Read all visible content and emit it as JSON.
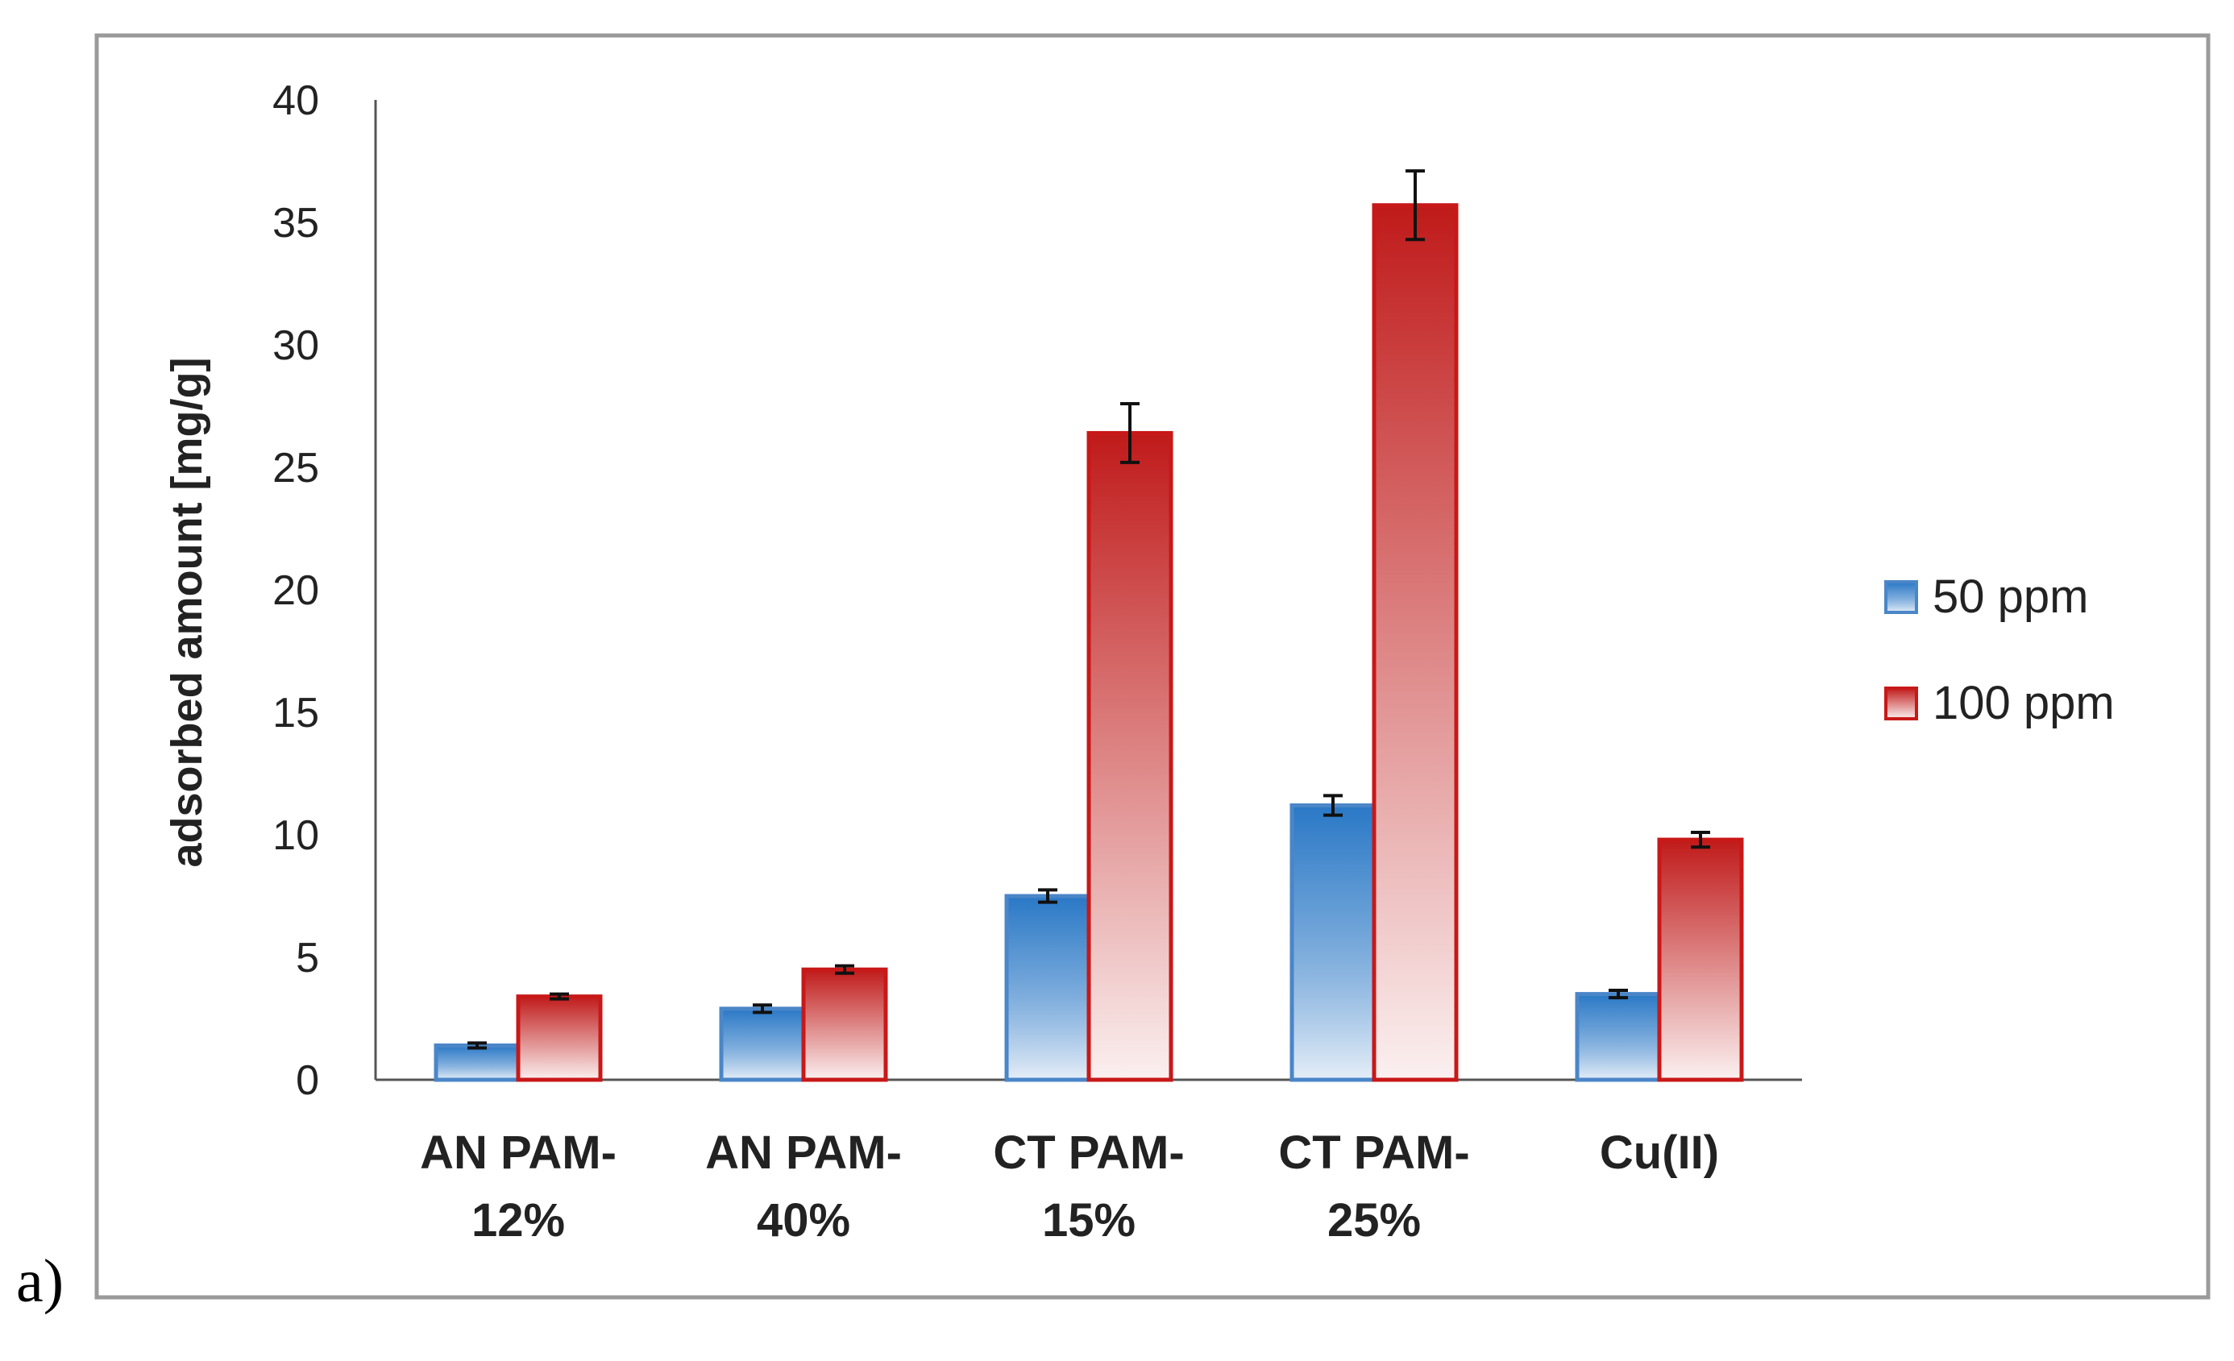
{
  "panel_label": "a)",
  "colors": {
    "series_50_top": "#2a78c6",
    "series_50_bottom": "#e6eef8",
    "series_50_edge": "#4a86c8",
    "series_100_top": "#c01a1a",
    "series_100_bottom": "#fbf0f0",
    "series_100_edge": "#c81818",
    "frame": "#9a9a9a"
  },
  "chart_data": {
    "type": "bar",
    "categories": [
      [
        "AN PAM-",
        "12%"
      ],
      [
        "AN PAM-",
        "40%"
      ],
      [
        "CT PAM-",
        "15%"
      ],
      [
        "CT PAM-",
        "25%"
      ],
      [
        "Cu(II)"
      ]
    ],
    "series": [
      {
        "name": "50 ppm",
        "values": [
          1.4,
          2.9,
          7.5,
          11.2,
          3.5
        ],
        "errors": [
          0.1,
          0.15,
          0.25,
          0.4,
          0.15
        ]
      },
      {
        "name": "100 ppm",
        "values": [
          3.4,
          4.5,
          26.4,
          35.7,
          9.8
        ],
        "errors": [
          0.1,
          0.15,
          1.2,
          1.4,
          0.3
        ]
      }
    ],
    "ylabel": "adsorbed amount  [mg/g]",
    "xlabel": "",
    "ylim": [
      0,
      40
    ],
    "yticks": [
      0,
      5,
      10,
      15,
      20,
      25,
      30,
      35,
      40
    ],
    "grid": false,
    "legend": "right"
  }
}
